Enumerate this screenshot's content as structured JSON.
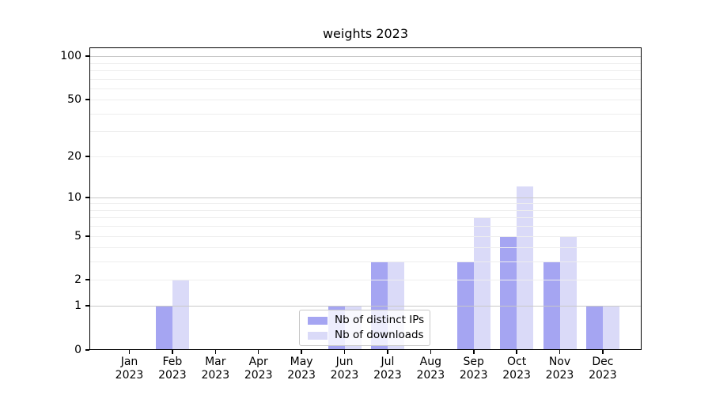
{
  "figure": {
    "background": "#ffffff"
  },
  "chart_data": {
    "type": "bar",
    "title": "weights 2023",
    "categories": [
      "Jan",
      "Feb",
      "Mar",
      "Apr",
      "May",
      "Jun",
      "Jul",
      "Aug",
      "Sep",
      "Oct",
      "Nov",
      "Dec"
    ],
    "category_year": "2023",
    "series": [
      {
        "name": "Nb of distinct IPs",
        "color": "#a5a5f2",
        "values": [
          0,
          1,
          0,
          0,
          0,
          1,
          3,
          0,
          3,
          5,
          3,
          1
        ]
      },
      {
        "name": "Nb of downloads",
        "color": "#dadaf8",
        "values": [
          0,
          2,
          0,
          0,
          0,
          1,
          3,
          0,
          7,
          12,
          5,
          1
        ]
      }
    ],
    "xlabel": "",
    "ylabel": "",
    "yscale": "log1p",
    "yticks": [
      0,
      1,
      2,
      5,
      10,
      20,
      50,
      100
    ],
    "ylim": [
      0,
      115
    ],
    "grid": "horizontal major+minor, drawn over bars",
    "legend": {
      "entries": [
        "Nb of distinct IPs",
        "Nb of downloads"
      ],
      "position": "lower center-left",
      "frame": true
    }
  },
  "colors": {
    "bar_distinct_ips": "#a5a5f2",
    "bar_downloads": "#dadaf8",
    "grid_major": "#c8c8c8",
    "grid_minor": "#eeeeee",
    "spine": "#000000",
    "text": "#000000",
    "legend_border": "#c8c8c8"
  }
}
